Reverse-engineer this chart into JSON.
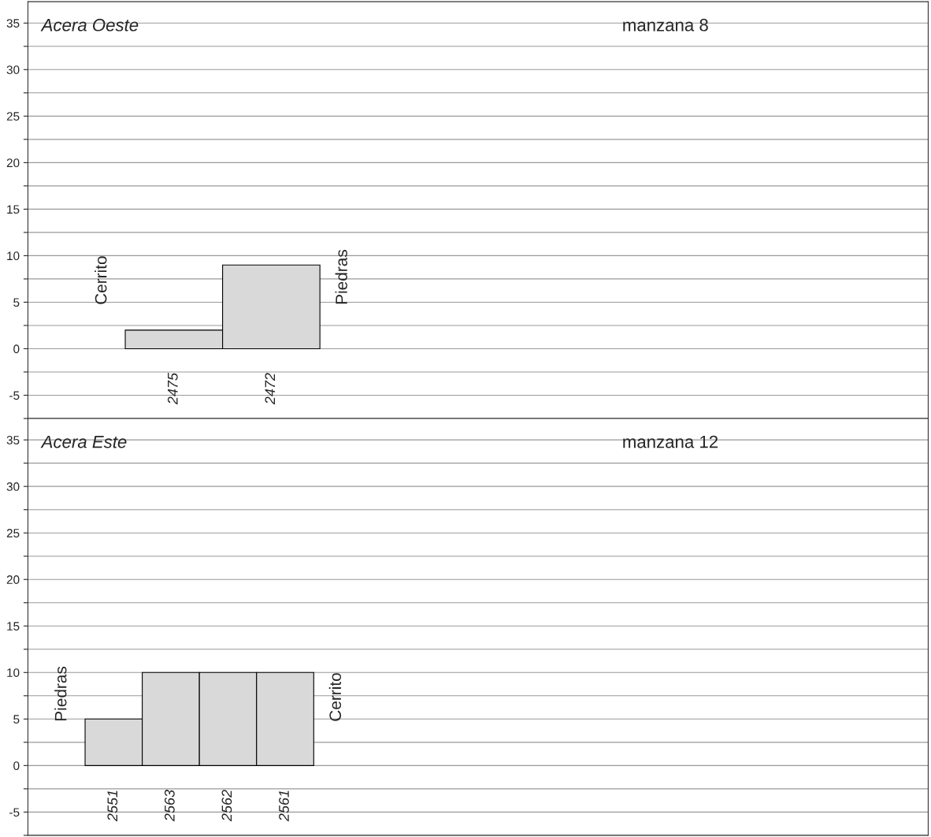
{
  "chart_data": [
    {
      "type": "bar",
      "title": "Acera Oeste",
      "categories": [
        "2475",
        "2472"
      ],
      "values": [
        2,
        9
      ],
      "color": "#d9d9d9",
      "annotations": [
        "Cerrito",
        "Piedras",
        "manzana 8"
      ],
      "ylim": [
        -7.5,
        37.3
      ],
      "yticks": [
        {
          "value": -7.5,
          "label": null
        },
        -5,
        {
          "value": -2.5,
          "label": null
        },
        0,
        {
          "value": 2.5,
          "label": null
        },
        5,
        {
          "value": 7.5,
          "label": null
        },
        10,
        {
          "value": 12.5,
          "label": null
        },
        15,
        {
          "value": 17.5,
          "label": null
        },
        20,
        {
          "value": 22.5,
          "label": null
        },
        25,
        {
          "value": 27.5,
          "label": null
        },
        30,
        {
          "value": 32.5,
          "label": null
        },
        35
      ],
      "grid": "y"
    },
    {
      "type": "bar",
      "title": "Acera Este",
      "categories": [
        "2551",
        "2563",
        "2562",
        "2561"
      ],
      "values": [
        5,
        10,
        10,
        10
      ],
      "color": "#d9d9d9",
      "annotations": [
        "Piedras",
        "Cerrito",
        "manzana 12"
      ],
      "ylim": [
        -7.5,
        37.3
      ],
      "yticks": [
        {
          "value": -7.5,
          "label": null
        },
        -5,
        {
          "value": -2.5,
          "label": null
        },
        0,
        {
          "value": 2.5,
          "label": null
        },
        5,
        {
          "value": 7.5,
          "label": null
        },
        10,
        {
          "value": 12.5,
          "label": null
        },
        15,
        {
          "value": 17.5,
          "label": null
        },
        20,
        {
          "value": 22.5,
          "label": null
        },
        25,
        {
          "value": 27.5,
          "label": null
        },
        30,
        {
          "value": 32.5,
          "label": null
        },
        35
      ],
      "grid": "y"
    }
  ]
}
